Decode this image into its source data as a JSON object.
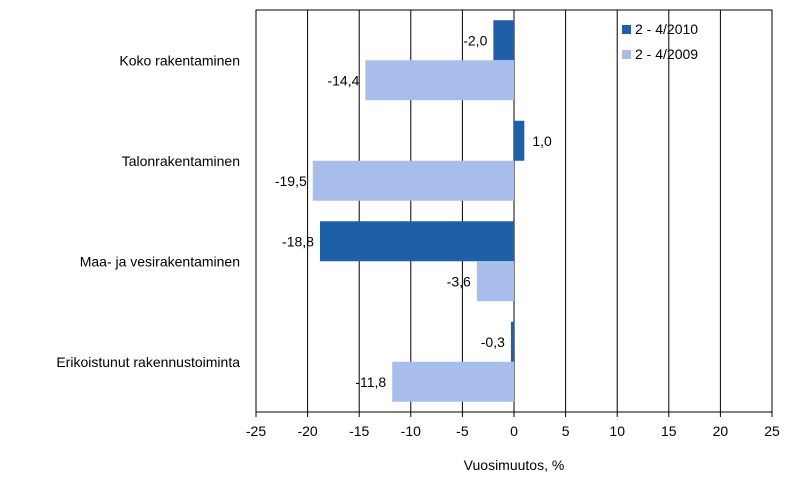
{
  "chart_data": {
    "type": "bar",
    "orientation": "horizontal",
    "categories": [
      "Koko rakentaminen",
      "Talonrakentaminen",
      "Maa- ja vesirakentaminen",
      "Erikoistunut rakennustoiminta"
    ],
    "series": [
      {
        "name": "2 - 4/2010",
        "values": [
          -2.0,
          1.0,
          -18.8,
          -0.3
        ],
        "labels": [
          "-2,0",
          "1,0",
          "-18,8",
          "-0,3"
        ],
        "color": "#1f5fa8"
      },
      {
        "name": "2 - 4/2009",
        "values": [
          -14.4,
          -19.5,
          -3.6,
          -11.8
        ],
        "labels": [
          "-14,4",
          "-19,5",
          "-3,6",
          "-11,8"
        ],
        "color": "#a9bdea"
      }
    ],
    "xlabel": "Vuosimuutos, %",
    "xlim": [
      -25,
      25
    ],
    "xticks": [
      -25,
      -20,
      -15,
      -10,
      -5,
      0,
      5,
      10,
      15,
      20,
      25
    ],
    "grid": "vertical",
    "legend": "top-right"
  }
}
